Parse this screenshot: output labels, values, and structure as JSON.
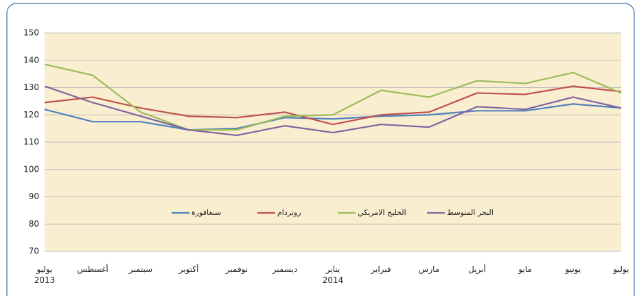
{
  "chart_data": {
    "type": "line",
    "categories": [
      "يوليو\n2013",
      "أغسطس",
      "سبتمبر",
      "أكتوبر",
      "نوفمبر",
      "ديسمبر",
      "يناير\n2014",
      "فبراير",
      "مارس",
      "أبريل",
      "مايو",
      "يونيو",
      "يوليو"
    ],
    "series": [
      {
        "name": "سنغافورة",
        "color": "#4f81bd",
        "values": [
          122,
          117.5,
          117.5,
          114.5,
          115,
          119,
          118.5,
          119.5,
          120,
          121.5,
          121.5,
          124,
          122.5
        ]
      },
      {
        "name": "روتردام",
        "color": "#c0504d",
        "values": [
          124.5,
          126.5,
          122.5,
          119.5,
          119,
          121,
          116.5,
          120,
          121,
          128,
          127.5,
          130.5,
          128.5
        ]
      },
      {
        "name": "الخليج الامريكي",
        "color": "#9bbb59",
        "values": [
          138.5,
          134.5,
          121,
          114.5,
          114.5,
          119.5,
          120,
          129,
          126.5,
          132.5,
          131.5,
          135.5,
          128
        ]
      },
      {
        "name": "البحر المتوسط",
        "color": "#8064a2",
        "values": [
          130.5,
          124.5,
          119.5,
          114.5,
          112.5,
          116,
          113.5,
          116.5,
          115.5,
          123,
          122,
          126.5,
          122.5
        ]
      }
    ],
    "ylim": [
      70,
      150
    ],
    "yticks": [
      70,
      80,
      90,
      100,
      110,
      120,
      130,
      140,
      150
    ],
    "grid": true,
    "legend": "inside-bottom"
  }
}
